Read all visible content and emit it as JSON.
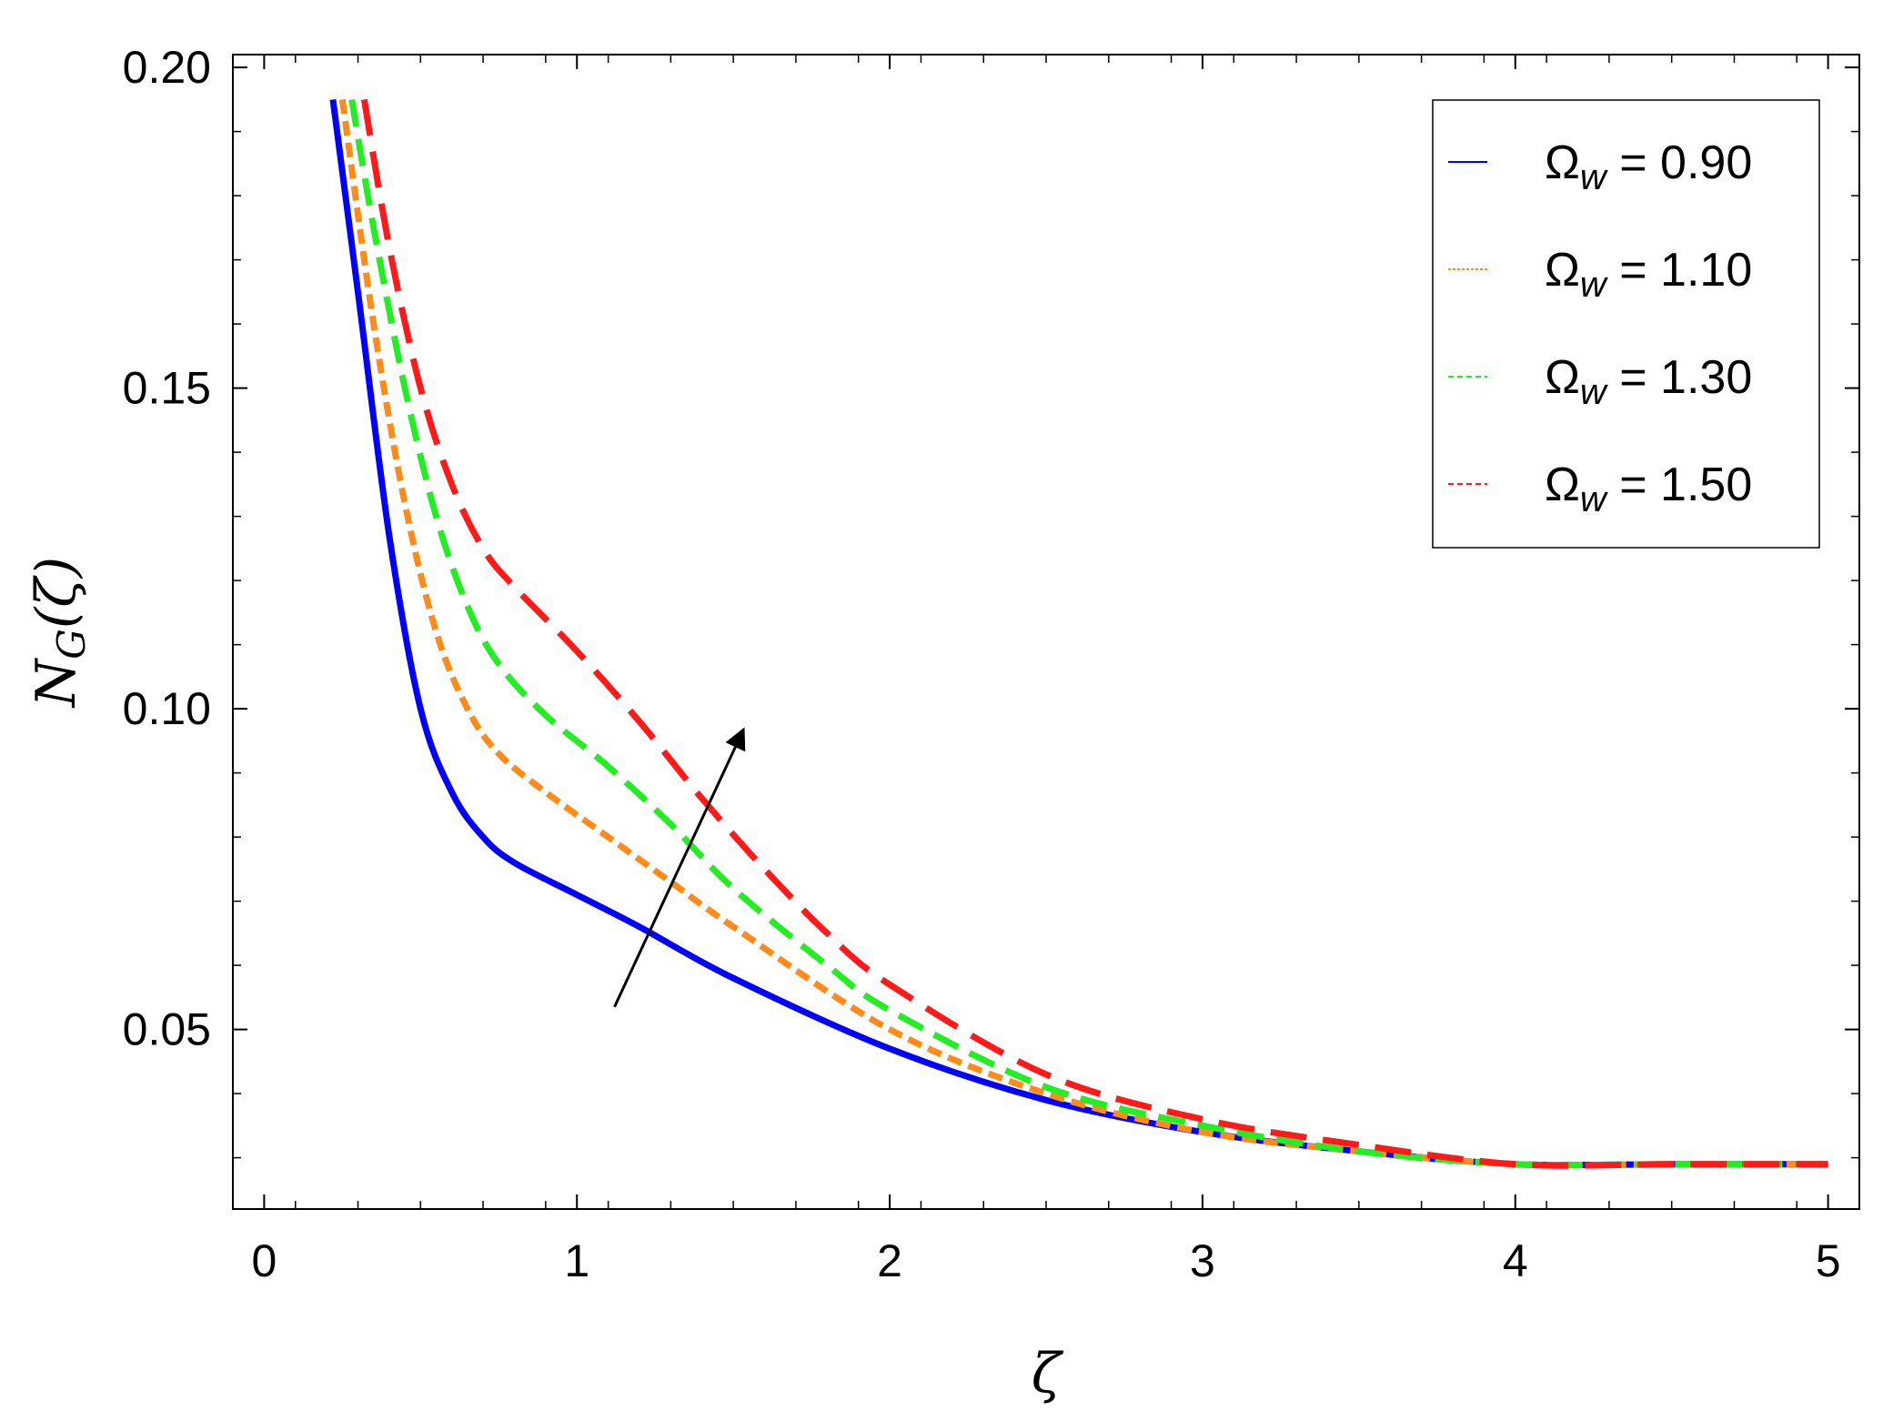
{
  "chart_data": {
    "type": "line",
    "xlabel": "ζ",
    "ylabel": "N_G(ζ)",
    "ylabel_main": "N",
    "ylabel_sub": "G",
    "ylabel_arg": "(ζ)",
    "xlim": [
      -0.1,
      5.1
    ],
    "ylim": [
      0.022,
      0.202
    ],
    "x_ticks": [
      0,
      1,
      2,
      3,
      4,
      5
    ],
    "x_tick_labels": [
      "0",
      "1",
      "2",
      "3",
      "4",
      "5"
    ],
    "y_ticks": [
      0.05,
      0.1,
      0.15,
      0.2
    ],
    "y_tick_labels": [
      "0.05",
      "0.10",
      "0.15",
      "0.20"
    ],
    "legend_position": "top-right",
    "legend_symbol": "Ω",
    "legend_subscript": "w",
    "series": [
      {
        "name": "Ω_w = 0.90",
        "param_label": "0.90",
        "color": "#0000ff",
        "style": "solid",
        "x": [
          0.22,
          0.3,
          0.4,
          0.5,
          0.6,
          0.7,
          0.8,
          1.0,
          1.2,
          1.5,
          2.0,
          2.5,
          3.0,
          3.5,
          4.0,
          4.5,
          5.0
        ],
        "y": [
          0.195,
          0.165,
          0.127,
          0.1,
          0.087,
          0.08,
          0.076,
          0.071,
          0.066,
          0.058,
          0.047,
          0.039,
          0.034,
          0.031,
          0.029,
          0.029,
          0.029
        ]
      },
      {
        "name": "Ω_w = 1.10",
        "param_label": "1.10",
        "color": "#ff8c1a",
        "style": "dotted",
        "x": [
          0.25,
          0.35,
          0.45,
          0.55,
          0.65,
          0.75,
          0.9,
          1.1,
          1.3,
          1.5,
          2.0,
          2.5,
          3.0,
          3.5,
          4.0,
          4.5,
          5.0
        ],
        "y": [
          0.195,
          0.16,
          0.132,
          0.112,
          0.1,
          0.093,
          0.087,
          0.08,
          0.073,
          0.066,
          0.05,
          0.04,
          0.034,
          0.031,
          0.029,
          0.029,
          0.029
        ]
      },
      {
        "name": "Ω_w = 1.30",
        "param_label": "1.30",
        "color": "#22ee22",
        "style": "dashed",
        "x": [
          0.28,
          0.35,
          0.45,
          0.55,
          0.65,
          0.75,
          0.9,
          1.1,
          1.3,
          1.5,
          1.8,
          2.0,
          2.5,
          3.0,
          3.5,
          4.0,
          4.5,
          5.0
        ],
        "y": [
          0.195,
          0.175,
          0.15,
          0.13,
          0.116,
          0.107,
          0.099,
          0.091,
          0.082,
          0.072,
          0.06,
          0.053,
          0.041,
          0.035,
          0.031,
          0.029,
          0.029,
          0.029
        ]
      },
      {
        "name": "Ω_w = 1.50",
        "param_label": "1.50",
        "color": "#ff1a1a",
        "style": "dashed",
        "x": [
          0.32,
          0.4,
          0.5,
          0.6,
          0.7,
          0.8,
          1.0,
          1.2,
          1.4,
          1.6,
          1.8,
          2.0,
          2.5,
          3.0,
          3.5,
          4.0,
          4.5,
          5.0
        ],
        "y": [
          0.195,
          0.172,
          0.15,
          0.135,
          0.125,
          0.119,
          0.109,
          0.098,
          0.086,
          0.075,
          0.065,
          0.057,
          0.043,
          0.036,
          0.032,
          0.029,
          0.029,
          0.029
        ]
      }
    ],
    "annotation_arrow": {
      "from": [
        1.12,
        0.0535
      ],
      "to": [
        1.53,
        0.0965
      ],
      "color": "#000000"
    }
  }
}
